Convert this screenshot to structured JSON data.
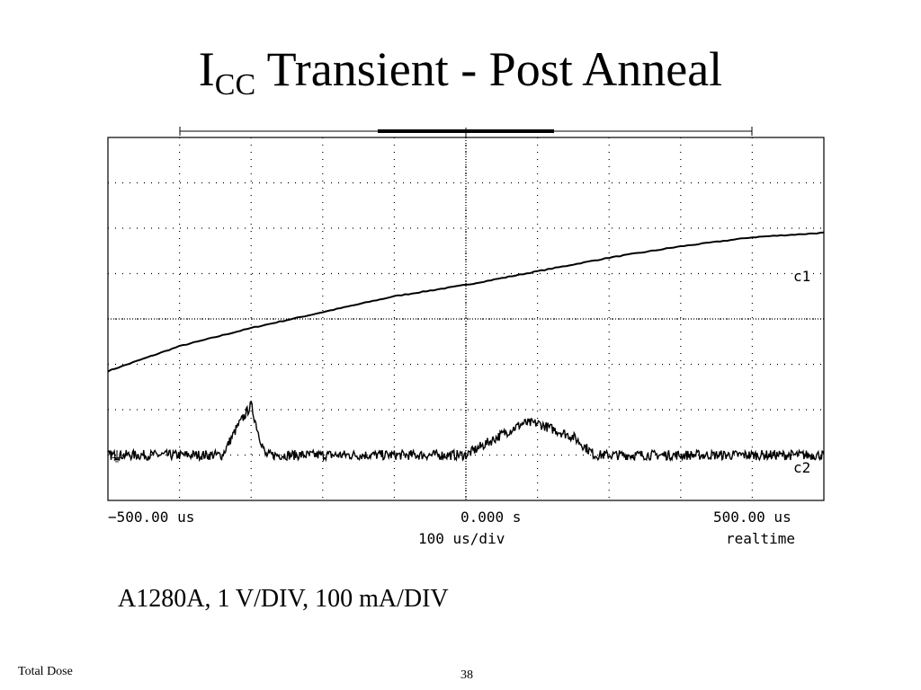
{
  "slide": {
    "title_main": "I",
    "title_sub": "CC",
    "title_rest": " Transient - Post Anneal",
    "caption": "A1280A, 1 V/DIV, 100 mA/DIV",
    "footer_left": "Total Dose",
    "page_number": "38"
  },
  "chart_data": {
    "type": "line",
    "title": "",
    "x_unit": "us",
    "xlim": [
      -500,
      500
    ],
    "x_tick_left": "−500.00 us",
    "x_tick_center": "0.000  s",
    "x_tick_right": "500.00 us",
    "timebase": "100  us/div",
    "mode": "realtime",
    "divisions": {
      "x": 10,
      "y": 8
    },
    "grid": true,
    "series": [
      {
        "name": "c1",
        "x": [
          -500,
          -400,
          -300,
          -200,
          -100,
          0,
          100,
          200,
          300,
          400,
          500
        ],
        "y": [
          -1.15,
          -0.6,
          -0.2,
          0.15,
          0.5,
          0.75,
          1.05,
          1.35,
          1.6,
          1.8,
          1.9
        ]
      },
      {
        "name": "c2",
        "x": [
          -500,
          -420,
          -340,
          -320,
          -300,
          -290,
          -280,
          -200,
          -100,
          0,
          50,
          80,
          100,
          150,
          180,
          250,
          300,
          400,
          500
        ],
        "y": [
          -3.0,
          -3.0,
          -3.0,
          -2.4,
          -1.9,
          -2.5,
          -3.0,
          -3.0,
          -3.0,
          -3.0,
          -2.55,
          -2.3,
          -2.3,
          -2.6,
          -3.0,
          -3.0,
          -3.0,
          -3.0,
          -3.0
        ]
      }
    ],
    "ground_marker": "⏚"
  }
}
